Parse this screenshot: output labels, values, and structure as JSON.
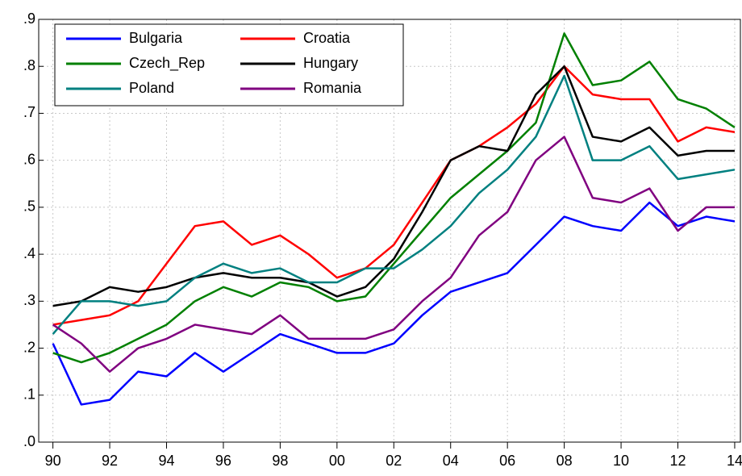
{
  "chart_data": {
    "type": "line",
    "x": [
      1990,
      1991,
      1992,
      1993,
      1994,
      1995,
      1996,
      1997,
      1998,
      1999,
      2000,
      2001,
      2002,
      2003,
      2004,
      2005,
      2006,
      2007,
      2008,
      2009,
      2010,
      2011,
      2012,
      2013,
      2014
    ],
    "series": [
      {
        "name": "Bulgaria",
        "color": "#0000ff",
        "values": [
          0.21,
          0.08,
          0.09,
          0.15,
          0.14,
          0.19,
          0.15,
          0.19,
          0.23,
          0.21,
          0.19,
          0.19,
          0.21,
          0.27,
          0.32,
          0.34,
          0.36,
          0.42,
          0.48,
          0.46,
          0.45,
          0.51,
          0.46,
          0.48,
          0.47
        ]
      },
      {
        "name": "Croatia",
        "color": "#ff0000",
        "values": [
          0.25,
          0.26,
          0.27,
          0.3,
          0.38,
          0.46,
          0.47,
          0.42,
          0.44,
          0.4,
          0.35,
          0.37,
          0.42,
          0.51,
          0.6,
          0.63,
          0.67,
          0.72,
          0.8,
          0.74,
          0.73,
          0.73,
          0.64,
          0.67,
          0.66
        ]
      },
      {
        "name": "Czech_Rep",
        "color": "#008000",
        "values": [
          0.19,
          0.17,
          0.19,
          0.22,
          0.25,
          0.3,
          0.33,
          0.31,
          0.34,
          0.33,
          0.3,
          0.31,
          0.38,
          0.45,
          0.52,
          0.57,
          0.62,
          0.68,
          0.87,
          0.76,
          0.77,
          0.81,
          0.73,
          0.71,
          0.67
        ]
      },
      {
        "name": "Hungary",
        "color": "#000000",
        "values": [
          0.29,
          0.3,
          0.33,
          0.32,
          0.33,
          0.35,
          0.36,
          0.35,
          0.35,
          0.34,
          0.31,
          0.33,
          0.39,
          0.49,
          0.6,
          0.63,
          0.62,
          0.74,
          0.8,
          0.65,
          0.64,
          0.67,
          0.61,
          0.62,
          0.62
        ]
      },
      {
        "name": "Poland",
        "color": "#008080",
        "values": [
          0.23,
          0.3,
          0.3,
          0.29,
          0.3,
          0.35,
          0.38,
          0.36,
          0.37,
          0.34,
          0.34,
          0.37,
          0.37,
          0.41,
          0.46,
          0.53,
          0.58,
          0.65,
          0.78,
          0.6,
          0.6,
          0.63,
          0.56,
          0.57,
          0.58
        ]
      },
      {
        "name": "Romania",
        "color": "#800080",
        "values": [
          0.25,
          0.21,
          0.15,
          0.2,
          0.22,
          0.25,
          0.24,
          0.23,
          0.27,
          0.22,
          0.22,
          0.22,
          0.24,
          0.3,
          0.35,
          0.44,
          0.49,
          0.6,
          0.65,
          0.52,
          0.51,
          0.54,
          0.45,
          0.5,
          0.5
        ]
      }
    ],
    "xlim": [
      1989.5,
      2014.2
    ],
    "xticks": [
      {
        "value": 1990,
        "label": "90"
      },
      {
        "value": 1992,
        "label": "92"
      },
      {
        "value": 1994,
        "label": "94"
      },
      {
        "value": 1996,
        "label": "96"
      },
      {
        "value": 1998,
        "label": "98"
      },
      {
        "value": 2000,
        "label": "00"
      },
      {
        "value": 2002,
        "label": "02"
      },
      {
        "value": 2004,
        "label": "04"
      },
      {
        "value": 2006,
        "label": "06"
      },
      {
        "value": 2008,
        "label": "08"
      },
      {
        "value": 2010,
        "label": "10"
      },
      {
        "value": 2012,
        "label": "12"
      },
      {
        "value": 2014,
        "label": "14"
      }
    ],
    "ylim": [
      0,
      0.9
    ],
    "yticks": [
      {
        "value": 0,
        "label": ".0"
      },
      {
        "value": 0.1,
        "label": ".1"
      },
      {
        "value": 0.2,
        "label": ".2"
      },
      {
        "value": 0.3,
        "label": ".3"
      },
      {
        "value": 0.4,
        "label": ".4"
      },
      {
        "value": 0.5,
        "label": ".5"
      },
      {
        "value": 0.6,
        "label": ".6"
      },
      {
        "value": 0.7,
        "label": ".7"
      },
      {
        "value": 0.8,
        "label": ".8"
      },
      {
        "value": 0.9,
        "label": ".9"
      }
    ],
    "grid": true,
    "legend": "upper left"
  }
}
